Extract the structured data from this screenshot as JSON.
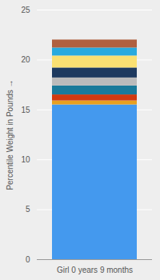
{
  "chart_data": {
    "type": "bar",
    "stacked": true,
    "categories": [
      "Girl 0 years 9 months"
    ],
    "series": [
      {
        "color": "#4499EE",
        "values": [
          15.5
        ]
      },
      {
        "color": "#E8A020",
        "values": [
          0.4
        ]
      },
      {
        "color": "#D03A10",
        "values": [
          0.6
        ]
      },
      {
        "color": "#1A7A9A",
        "values": [
          0.9
        ]
      },
      {
        "color": "#BBBBBB",
        "values": [
          0.8
        ]
      },
      {
        "color": "#1E3A5F",
        "values": [
          1.0
        ]
      },
      {
        "color": "#FAE072",
        "values": [
          1.2
        ]
      },
      {
        "color": "#29AADF",
        "values": [
          0.8
        ]
      },
      {
        "color": "#B06040",
        "values": [
          0.8
        ]
      }
    ],
    "ylabel": "Percentile Weight in Pounds",
    "ylim": [
      0,
      25
    ],
    "yticks": [
      0,
      5,
      10,
      15,
      20,
      25
    ],
    "grid": true
  }
}
